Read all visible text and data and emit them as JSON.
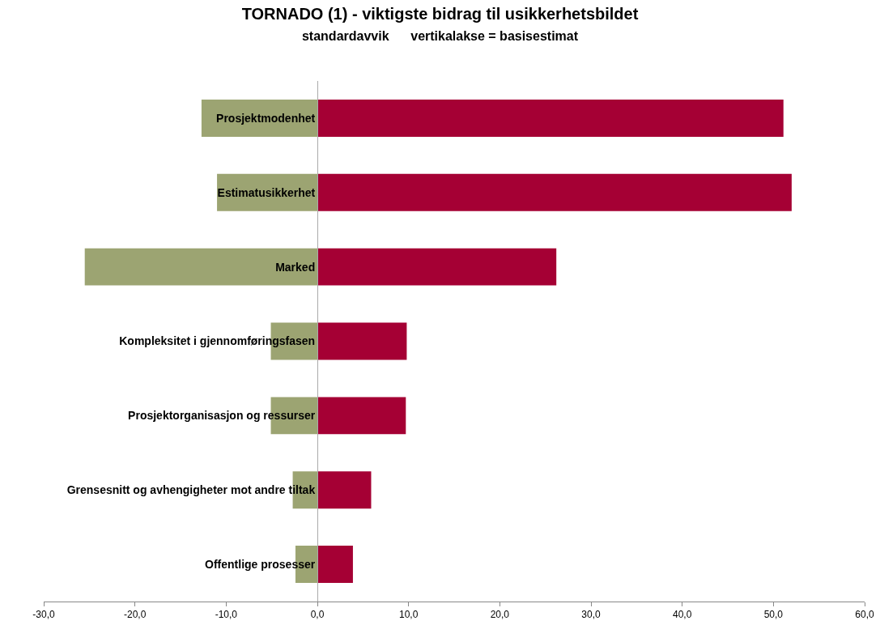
{
  "chart_data": {
    "type": "bar",
    "orientation": "horizontal",
    "stacked": true,
    "title": "TORNADO (1) - viktigste bidrag til usikkerhetsbildet",
    "subtitle": "standardavvik      vertikalakse = basisestimat",
    "categories": [
      "Prosjektmodenhet",
      "Estimatusikkerhet",
      "Marked",
      "Kompleksitet i gjennomføringsfasen",
      "Prosjektorganisasjon og ressurser",
      "Grensesnitt og avhengigheter mot andre tiltak",
      "Offentlige prosesser"
    ],
    "series": [
      {
        "color": "#9ca472",
        "values": [
          -12.7,
          -11.0,
          -25.5,
          -5.1,
          -5.1,
          -2.7,
          -2.4
        ]
      },
      {
        "color": "#a50034",
        "values": [
          51.1,
          52.0,
          26.2,
          9.8,
          9.7,
          5.9,
          3.9
        ]
      }
    ],
    "xlim": [
      -30,
      60
    ],
    "xticks": [
      {
        "value": -30,
        "label": "-30,0"
      },
      {
        "value": -20,
        "label": "-20,0"
      },
      {
        "value": -10,
        "label": "-10,0"
      },
      {
        "value": 0,
        "label": "0,0"
      },
      {
        "value": 10,
        "label": "10,0"
      },
      {
        "value": 20,
        "label": "20,0"
      },
      {
        "value": 30,
        "label": "30,0"
      },
      {
        "value": 40,
        "label": "40,0"
      },
      {
        "value": 50,
        "label": "50,0"
      },
      {
        "value": 60,
        "label": "60,0"
      }
    ],
    "grid": false
  }
}
